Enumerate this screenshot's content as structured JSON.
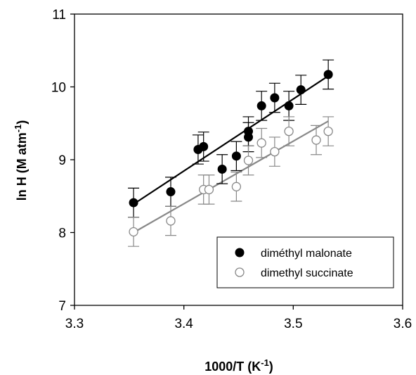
{
  "chart_data": {
    "type": "scatter",
    "xlabel": {
      "main": "1000/T (K",
      "sup": "-1",
      "close": ")"
    },
    "ylabel": {
      "main": "ln H (M atm",
      "sup": "-1",
      "close": ")"
    },
    "xlim": [
      3.3,
      3.6
    ],
    "ylim": [
      7,
      11
    ],
    "x_ticks": [
      "3.3",
      "3.4",
      "3.5",
      "3.6"
    ],
    "y_ticks": [
      "7",
      "8",
      "9",
      "10",
      "11"
    ],
    "x_tick_values": [
      3.3,
      3.4,
      3.5,
      3.6
    ],
    "y_tick_values": [
      7,
      8,
      9,
      10,
      11
    ],
    "grid": false,
    "legend_position": "bottom-right",
    "series": [
      {
        "name": "diméthyl malonate",
        "marker": "filled-circle",
        "color": "#000000",
        "error_bar": 0.2,
        "x": [
          3.354,
          3.388,
          3.413,
          3.418,
          3.435,
          3.448,
          3.459,
          3.459,
          3.471,
          3.483,
          3.496,
          3.507,
          3.532
        ],
        "y": [
          8.41,
          8.56,
          9.14,
          9.18,
          8.87,
          9.05,
          9.31,
          9.39,
          9.74,
          9.85,
          9.74,
          9.96,
          10.17
        ],
        "fit": {
          "x": [
            3.354,
            3.532
          ],
          "y": [
            8.39,
            10.15
          ]
        }
      },
      {
        "name": "dimethyl succinate",
        "marker": "open-circle",
        "color": "#888888",
        "error_bar": 0.2,
        "x": [
          3.354,
          3.388,
          3.418,
          3.423,
          3.448,
          3.459,
          3.471,
          3.483,
          3.496,
          3.521,
          3.532
        ],
        "y": [
          8.01,
          8.16,
          8.59,
          8.59,
          8.63,
          8.99,
          9.23,
          9.11,
          9.39,
          9.27,
          9.39
        ],
        "fit": {
          "x": [
            3.354,
            3.532
          ],
          "y": [
            8.0,
            9.53
          ]
        }
      }
    ]
  }
}
